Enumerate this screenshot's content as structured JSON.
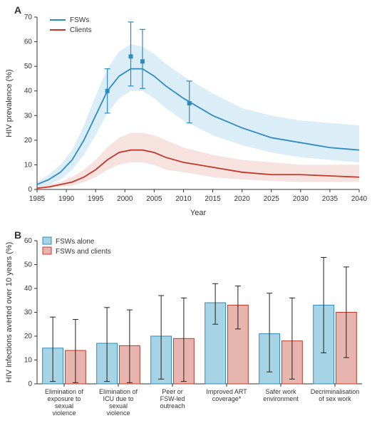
{
  "panelA": {
    "label": "A",
    "type": "line",
    "x_label": "Year",
    "y_label": "HIV prevalence (%)",
    "xlim": [
      1985,
      2040
    ],
    "ylim": [
      0,
      70
    ],
    "xtick_step": 5,
    "ytick_step": 10,
    "background_color": "#ffffff",
    "axis_color": "#333333",
    "legend": {
      "items": [
        {
          "label": "FSWs",
          "color": "#2e8bc0",
          "swatch_type": "line"
        },
        {
          "label": "Clients",
          "color": "#c0392b",
          "swatch_type": "line"
        }
      ],
      "position": "top-left",
      "fontsize": 10
    },
    "series": [
      {
        "name": "FSWs",
        "color": "#2e8bc0",
        "band_color": "#cce7f3",
        "line_width": 1.8,
        "x": [
          1985,
          1987,
          1989,
          1991,
          1993,
          1995,
          1997,
          1999,
          2001,
          2003,
          2005,
          2007,
          2010,
          2015,
          2020,
          2025,
          2030,
          2035,
          2040
        ],
        "y": [
          2,
          4,
          7,
          12,
          20,
          30,
          40,
          46,
          49,
          49,
          46,
          42,
          37,
          30,
          25,
          21,
          19,
          17,
          16
        ],
        "y_lo": [
          1,
          2,
          4,
          8,
          14,
          22,
          31,
          37,
          40,
          40,
          37,
          33,
          28,
          22,
          18,
          15,
          13,
          12,
          11
        ],
        "y_hi": [
          3,
          6,
          10,
          16,
          26,
          38,
          49,
          56,
          59,
          58,
          55,
          51,
          46,
          39,
          33,
          30,
          28,
          27,
          26
        ]
      },
      {
        "name": "Clients",
        "color": "#c0392b",
        "band_color": "#f2d5d0",
        "line_width": 1.8,
        "x": [
          1985,
          1987,
          1989,
          1991,
          1993,
          1995,
          1997,
          1999,
          2001,
          2003,
          2005,
          2007,
          2010,
          2015,
          2020,
          2025,
          2030,
          2035,
          2040
        ],
        "y": [
          0.5,
          1,
          2,
          3,
          5,
          8,
          12,
          15,
          16,
          16,
          15,
          13,
          11,
          9,
          7,
          6,
          6,
          5.5,
          5
        ],
        "y_lo": [
          0.2,
          0.5,
          1,
          1.5,
          3,
          5,
          8,
          10,
          11,
          11,
          10,
          8,
          7,
          5,
          4,
          3.5,
          3,
          3,
          3
        ],
        "y_hi": [
          1,
          2,
          3,
          5,
          8,
          12,
          17,
          21,
          23,
          23,
          22,
          20,
          17,
          14,
          12,
          11,
          10,
          10,
          10
        ]
      }
    ],
    "data_points": [
      {
        "x": 1997,
        "y": 40,
        "lo": 31,
        "hi": 49,
        "color": "#2e8bc0",
        "marker": "square",
        "size": 6
      },
      {
        "x": 2001,
        "y": 54,
        "lo": 42,
        "hi": 68,
        "color": "#2e8bc0",
        "marker": "square",
        "size": 6
      },
      {
        "x": 2003,
        "y": 52,
        "lo": 41,
        "hi": 65,
        "color": "#2e8bc0",
        "marker": "square",
        "size": 6
      },
      {
        "x": 2011,
        "y": 35,
        "lo": 27,
        "hi": 44,
        "color": "#2e8bc0",
        "marker": "square",
        "size": 6
      }
    ]
  },
  "panelB": {
    "label": "B",
    "type": "bar",
    "x_label": "",
    "y_label": "HIV infections averted over 10 years (%)",
    "ylim": [
      0,
      60
    ],
    "ytick_step": 10,
    "background_color": "#ffffff",
    "axis_color": "#333333",
    "bar_width": 0.38,
    "legend": {
      "items": [
        {
          "label": "FSWs alone",
          "fill": "#a7d4e4",
          "stroke": "#2e8bc0",
          "swatch_type": "box"
        },
        {
          "label": "FSWs and clients",
          "fill": "#e7b5ae",
          "stroke": "#c0392b",
          "swatch_type": "box"
        }
      ],
      "position": "top-left",
      "fontsize": 10
    },
    "categories": [
      "Elimination of exposure to sexual violence",
      "Elimination of ICU due to sexual violence",
      "Peer or FSW-led outreach",
      "Improved ART coverage*",
      "Safer work environment",
      "Decriminalisation of sex work"
    ],
    "series": [
      {
        "name": "FSWs alone",
        "fill": "#a7d4e4",
        "stroke": "#2e8bc0",
        "values": [
          15,
          17,
          20,
          34,
          21,
          33
        ],
        "err_lo": [
          1,
          1,
          2,
          25,
          5,
          13
        ],
        "err_hi": [
          28,
          32,
          37,
          42,
          38,
          53
        ]
      },
      {
        "name": "FSWs and clients",
        "fill": "#e7b5ae",
        "stroke": "#c0392b",
        "values": [
          14,
          16,
          19,
          33,
          18,
          30
        ],
        "err_lo": [
          0.5,
          0.5,
          1,
          23,
          2,
          11
        ],
        "err_hi": [
          27,
          31,
          36,
          41,
          36,
          49
        ]
      }
    ]
  },
  "colors": {
    "axis": "#333333",
    "tick": "#333333",
    "error_bar": "#222222"
  },
  "fontsize": {
    "axis_label": 11,
    "tick": 10,
    "panel_label": 14,
    "legend": 10,
    "category": 9
  }
}
